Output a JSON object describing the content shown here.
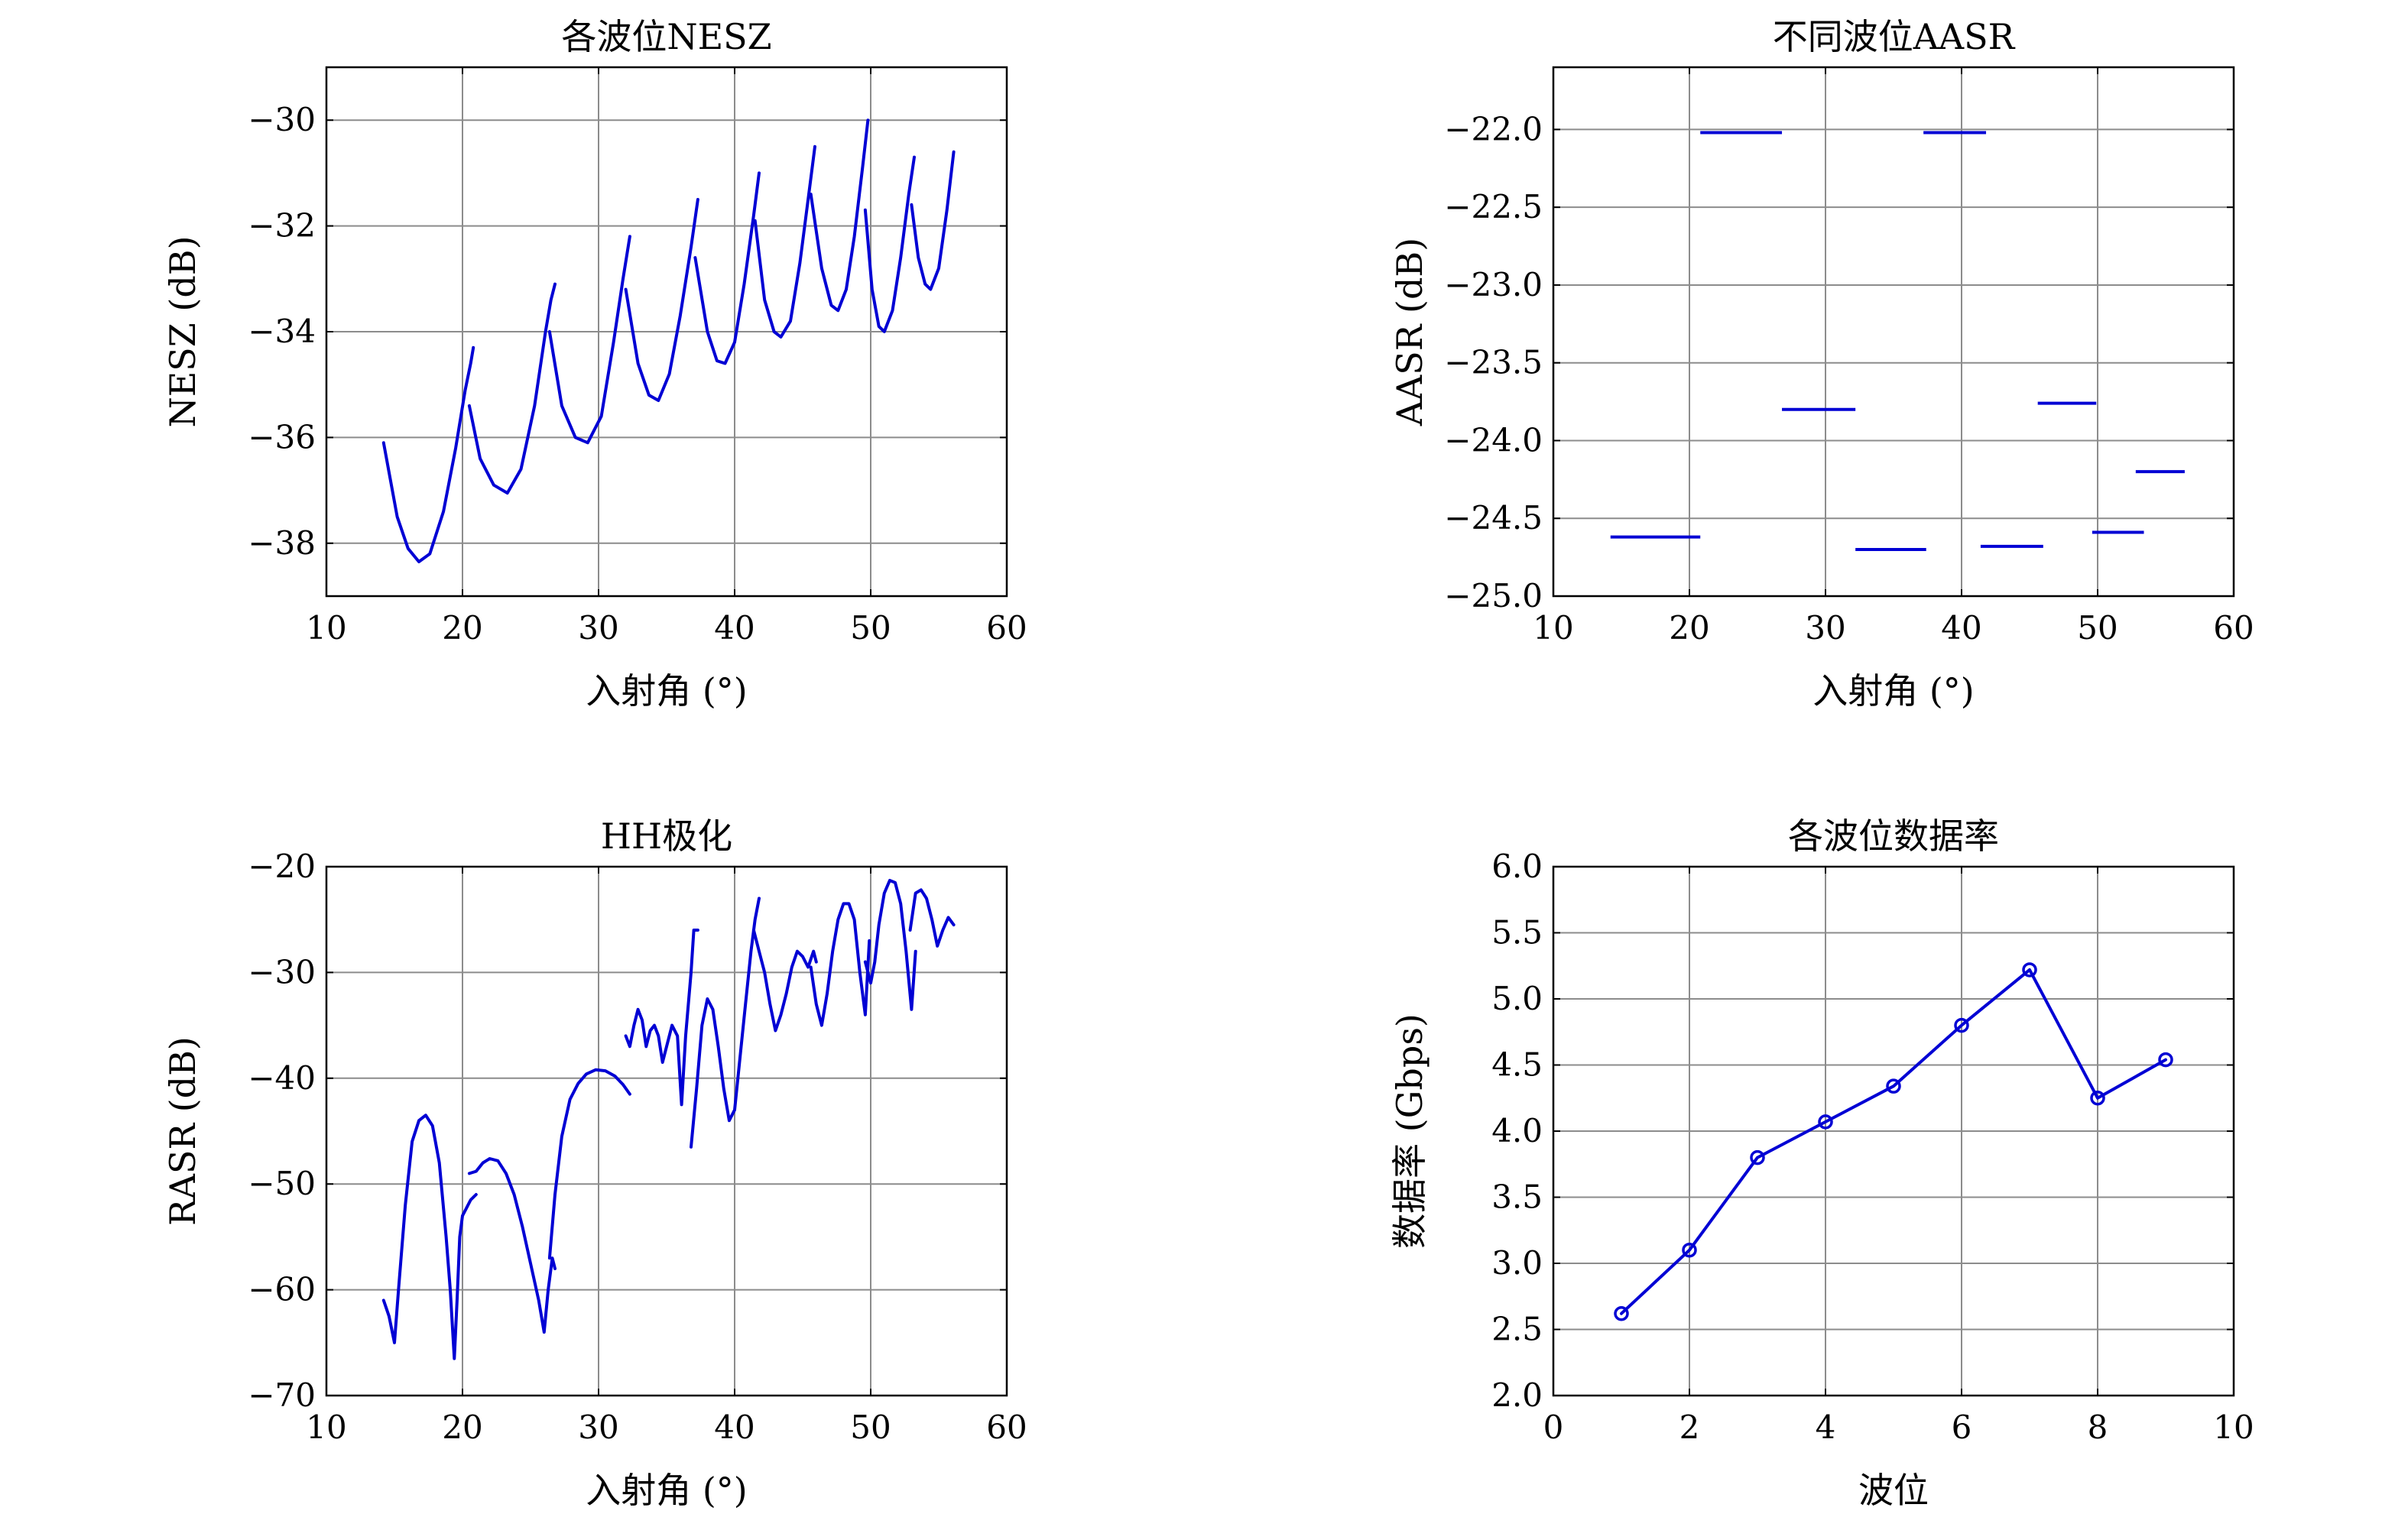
{
  "colors": {
    "series": "#0000d4",
    "grid": "#8c8c8c",
    "axis": "#000000"
  },
  "chart_data": [
    {
      "id": "nesz",
      "type": "line",
      "title": "各波位NESZ",
      "xlabel": "入射角 (°)",
      "ylabel": "NESZ (dB)",
      "xlim": [
        10,
        60
      ],
      "ylim": [
        -39,
        -29
      ],
      "xticks": [
        10,
        20,
        30,
        40,
        50,
        60
      ],
      "yticks": [
        -38,
        -36,
        -34,
        -32,
        -30
      ],
      "ytick_labels": [
        "−38",
        "−36",
        "−34",
        "−32",
        "−30"
      ],
      "grid": true,
      "series": [
        {
          "x": [
            14.2,
            15.2,
            16.0,
            16.8,
            17.6,
            18.6,
            19.5,
            20.2,
            20.6,
            20.8
          ],
          "y": [
            -36.1,
            -37.5,
            -38.1,
            -38.35,
            -38.2,
            -37.4,
            -36.2,
            -35.1,
            -34.6,
            -34.3
          ]
        },
        {
          "x": [
            20.5,
            21.3,
            22.3,
            23.3,
            24.3,
            25.3,
            26.1,
            26.5,
            26.8
          ],
          "y": [
            -35.4,
            -36.4,
            -36.9,
            -37.05,
            -36.6,
            -35.4,
            -34.0,
            -33.4,
            -33.1
          ]
        },
        {
          "x": [
            26.4,
            27.3,
            28.3,
            29.2,
            30.2,
            31.1,
            31.8,
            32.3
          ],
          "y": [
            -34.0,
            -35.4,
            -36.0,
            -36.1,
            -35.6,
            -34.2,
            -33.0,
            -32.2
          ]
        },
        {
          "x": [
            32.0,
            32.9,
            33.7,
            34.4,
            35.2,
            36.0,
            36.8,
            37.3
          ],
          "y": [
            -33.2,
            -34.6,
            -35.2,
            -35.3,
            -34.8,
            -33.7,
            -32.4,
            -31.5
          ]
        },
        {
          "x": [
            37.1,
            38.0,
            38.7,
            39.3,
            40.0,
            40.7,
            41.4,
            41.8
          ],
          "y": [
            -32.6,
            -34.0,
            -34.55,
            -34.6,
            -34.2,
            -33.1,
            -31.8,
            -31.0
          ]
        },
        {
          "x": [
            41.5,
            42.2,
            42.9,
            43.4,
            44.1,
            44.8,
            45.5,
            45.9
          ],
          "y": [
            -31.9,
            -33.4,
            -34.0,
            -34.1,
            -33.8,
            -32.7,
            -31.3,
            -30.5
          ]
        },
        {
          "x": [
            45.6,
            46.4,
            47.1,
            47.6,
            48.2,
            48.8,
            49.4,
            49.8
          ],
          "y": [
            -31.4,
            -32.8,
            -33.5,
            -33.6,
            -33.2,
            -32.2,
            -30.9,
            -30.0
          ]
        },
        {
          "x": [
            49.6,
            50.1,
            50.6,
            51.0,
            51.6,
            52.2,
            52.8,
            53.2
          ],
          "y": [
            -31.7,
            -33.2,
            -33.9,
            -34.0,
            -33.6,
            -32.6,
            -31.4,
            -30.7
          ]
        },
        {
          "x": [
            53.0,
            53.5,
            54.0,
            54.4,
            55.0,
            55.6,
            56.1
          ],
          "y": [
            -31.6,
            -32.6,
            -33.1,
            -33.2,
            -32.8,
            -31.7,
            -30.6
          ]
        }
      ]
    },
    {
      "id": "aasr",
      "type": "segments",
      "title": "不同波位AASR",
      "xlabel": "入射角 (°)",
      "ylabel": "AASR (dB)",
      "xlim": [
        10,
        60
      ],
      "ylim": [
        -25,
        -21.6
      ],
      "xticks": [
        10,
        20,
        30,
        40,
        50,
        60
      ],
      "yticks": [
        -25.0,
        -24.5,
        -24.0,
        -23.5,
        -23.0,
        -22.5,
        -22.0
      ],
      "ytick_labels": [
        "−25.0",
        "−24.5",
        "−24.0",
        "−23.5",
        "−23.0",
        "−22.5",
        "−22.0"
      ],
      "grid": true,
      "segments": [
        {
          "x0": 14.2,
          "x1": 20.8,
          "y": -24.62
        },
        {
          "x0": 20.8,
          "x1": 26.8,
          "y": -22.02
        },
        {
          "x0": 26.8,
          "x1": 32.2,
          "y": -23.8
        },
        {
          "x0": 32.2,
          "x1": 37.4,
          "y": -24.7
        },
        {
          "x0": 37.2,
          "x1": 41.8,
          "y": -22.02
        },
        {
          "x0": 41.4,
          "x1": 46.0,
          "y": -24.68
        },
        {
          "x0": 45.6,
          "x1": 49.9,
          "y": -23.76
        },
        {
          "x0": 49.6,
          "x1": 53.4,
          "y": -24.59
        },
        {
          "x0": 52.8,
          "x1": 56.4,
          "y": -24.2
        }
      ]
    },
    {
      "id": "rasr",
      "type": "line",
      "title": "HH极化",
      "xlabel": "入射角 (°)",
      "ylabel": "RASR (dB)",
      "xlim": [
        10,
        60
      ],
      "ylim": [
        -70,
        -20
      ],
      "xticks": [
        10,
        20,
        30,
        40,
        50,
        60
      ],
      "yticks": [
        -70,
        -60,
        -50,
        -40,
        -30,
        -20
      ],
      "ytick_labels": [
        "−70",
        "−60",
        "−50",
        "−40",
        "−30",
        "−20"
      ],
      "grid": true,
      "series": [
        {
          "x": [
            14.2,
            14.6,
            15.0,
            15.3,
            15.8,
            16.3,
            16.8,
            17.3,
            17.8,
            18.3,
            18.8,
            19.1,
            19.4,
            19.6,
            19.8,
            20.0,
            20.2,
            20.6,
            21.0
          ],
          "y": [
            -61.0,
            -62.5,
            -65.0,
            -60.0,
            -52.0,
            -46.0,
            -44.0,
            -43.5,
            -44.5,
            -48.0,
            -55.0,
            -60.0,
            -66.5,
            -61.0,
            -55.0,
            -53.0,
            -52.5,
            -51.5,
            -51.0
          ]
        },
        {
          "x": [
            20.5,
            21.0,
            21.5,
            22.0,
            22.6,
            23.2,
            23.8,
            24.4,
            25.0,
            25.6,
            26.0,
            26.3,
            26.6,
            26.8
          ],
          "y": [
            -49.0,
            -48.8,
            -48.0,
            -47.6,
            -47.8,
            -49.0,
            -51.0,
            -54.0,
            -57.5,
            -61.0,
            -64.0,
            -60.0,
            -57.0,
            -58.0
          ]
        },
        {
          "x": [
            26.4,
            26.8,
            27.3,
            27.9,
            28.5,
            29.1,
            29.8,
            30.5,
            31.2,
            31.8,
            32.3
          ],
          "y": [
            -57.0,
            -51.0,
            -45.5,
            -42.0,
            -40.5,
            -39.6,
            -39.2,
            -39.3,
            -39.8,
            -40.6,
            -41.5
          ]
        },
        {
          "x": [
            32.0,
            32.3,
            32.6,
            32.9,
            33.2,
            33.5,
            33.8,
            34.1,
            34.4,
            34.7,
            35.0,
            35.4,
            35.8,
            36.1,
            36.4,
            36.8,
            37.0,
            37.3
          ],
          "y": [
            -36.0,
            -37.0,
            -35.0,
            -33.5,
            -34.5,
            -37.0,
            -35.5,
            -35.0,
            -36.0,
            -38.5,
            -37.0,
            -35.0,
            -36.0,
            -42.5,
            -36.0,
            -30.0,
            -26.0,
            -26.0
          ]
        },
        {
          "x": [
            36.8,
            37.2,
            37.6,
            38.0,
            38.4,
            38.8,
            39.2,
            39.6,
            40.0,
            40.4,
            40.8,
            41.2,
            41.5,
            41.8
          ],
          "y": [
            -46.5,
            -41.0,
            -35.0,
            -32.5,
            -33.5,
            -37.0,
            -41.0,
            -44.0,
            -43.0,
            -38.0,
            -33.0,
            -28.0,
            -25.0,
            -23.0
          ]
        },
        {
          "x": [
            41.4,
            41.8,
            42.2,
            42.6,
            43.0,
            43.4,
            43.8,
            44.2,
            44.6,
            45.0,
            45.4,
            45.8,
            46.0
          ],
          "y": [
            -26.0,
            -28.0,
            -30.0,
            -33.0,
            -35.5,
            -34.0,
            -32.0,
            -29.5,
            -28.0,
            -28.5,
            -29.5,
            -28.0,
            -29.0
          ]
        },
        {
          "x": [
            45.6,
            46.0,
            46.4,
            46.8,
            47.2,
            47.6,
            48.0,
            48.4,
            48.8,
            49.2,
            49.6,
            49.9
          ],
          "y": [
            -29.5,
            -33.0,
            -35.0,
            -32.0,
            -28.0,
            -25.0,
            -23.5,
            -23.5,
            -25.0,
            -30.0,
            -34.0,
            -27.0
          ]
        },
        {
          "x": [
            49.6,
            50.0,
            50.3,
            50.6,
            51.0,
            51.4,
            51.8,
            52.2,
            52.6,
            53.0,
            53.3
          ],
          "y": [
            -29.0,
            -31.0,
            -29.0,
            -25.5,
            -22.5,
            -21.3,
            -21.5,
            -23.5,
            -28.0,
            -33.5,
            -28.0
          ]
        },
        {
          "x": [
            52.9,
            53.3,
            53.7,
            54.1,
            54.5,
            54.9,
            55.3,
            55.7,
            56.1
          ],
          "y": [
            -26.0,
            -22.5,
            -22.2,
            -23.0,
            -25.0,
            -27.5,
            -26.0,
            -24.8,
            -25.5
          ]
        }
      ]
    },
    {
      "id": "datarate",
      "type": "line",
      "title": "各波位数据率",
      "xlabel": "波位",
      "ylabel": "数据率 (Gbps)",
      "xlim": [
        0,
        10
      ],
      "ylim": [
        2.0,
        6.0
      ],
      "xticks": [
        0,
        2,
        4,
        6,
        8,
        10
      ],
      "yticks": [
        2.0,
        2.5,
        3.0,
        3.5,
        4.0,
        4.5,
        5.0,
        5.5,
        6.0
      ],
      "ytick_labels": [
        "2.0",
        "2.5",
        "3.0",
        "3.5",
        "4.0",
        "4.5",
        "5.0",
        "5.5",
        "6.0"
      ],
      "grid": true,
      "markers": true,
      "series": [
        {
          "x": [
            1,
            2,
            3,
            4,
            5,
            6,
            7,
            8,
            9
          ],
          "y": [
            2.62,
            3.1,
            3.8,
            4.07,
            4.34,
            4.8,
            5.22,
            4.25,
            4.54
          ]
        }
      ]
    }
  ]
}
